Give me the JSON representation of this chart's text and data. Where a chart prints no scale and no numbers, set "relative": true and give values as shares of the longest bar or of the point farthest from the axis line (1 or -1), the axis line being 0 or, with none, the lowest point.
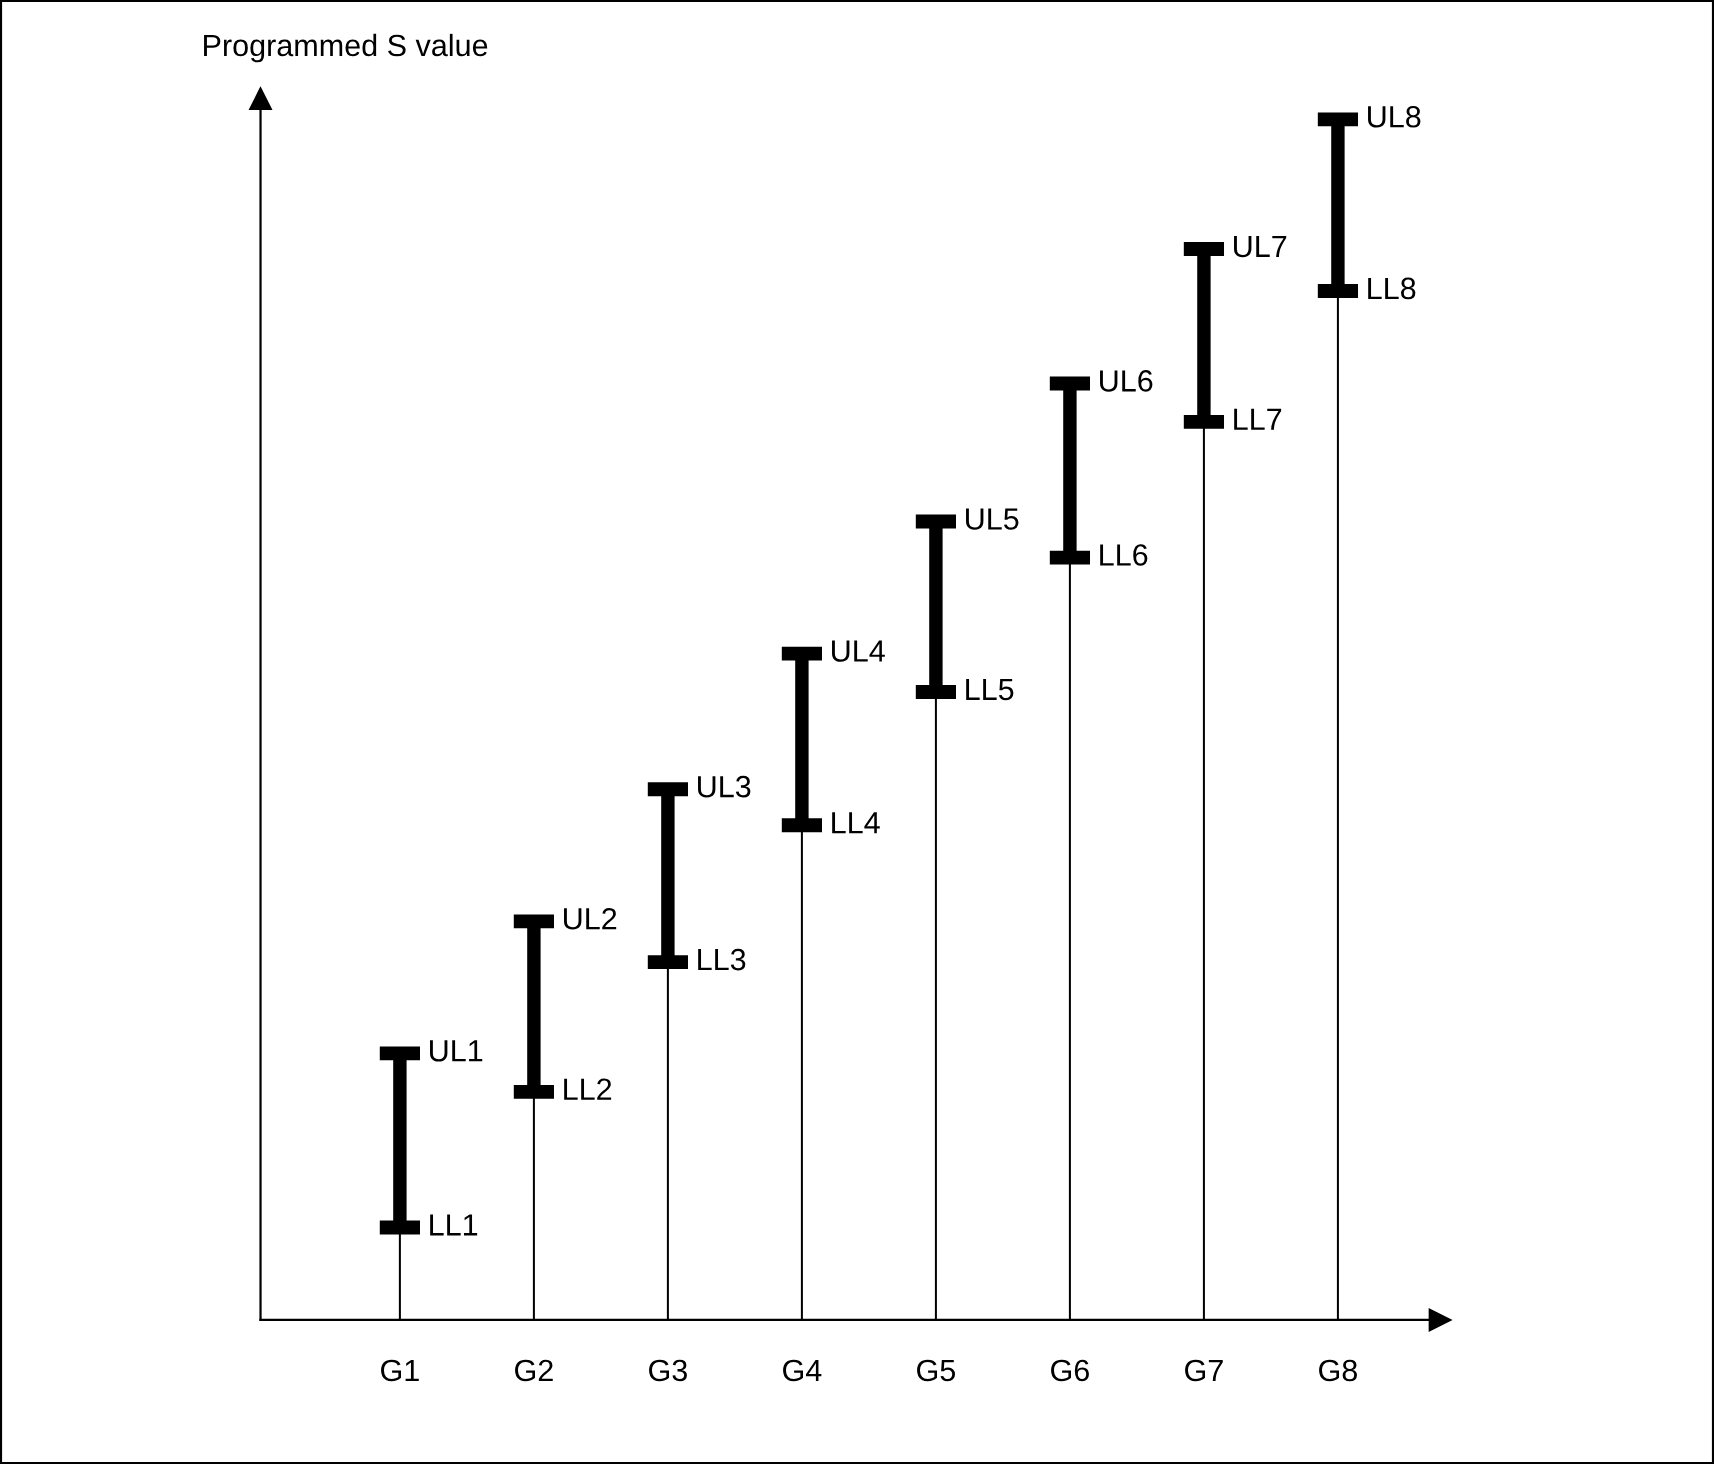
{
  "chart_data": {
    "type": "bar",
    "relative": true,
    "stacked": true,
    "ylabel": "Programmed S value",
    "categories": [
      "G1",
      "G2",
      "G3",
      "G4",
      "G5",
      "G6",
      "G7",
      "G8"
    ],
    "series": [
      {
        "color": "#000000",
        "values": [
          0.077,
          0.19,
          0.298,
          0.412,
          0.523,
          0.635,
          0.748,
          0.857
        ]
      },
      {
        "color": "#000000",
        "values": [
          0.145,
          0.142,
          0.144,
          0.143,
          0.142,
          0.145,
          0.144,
          0.143
        ]
      }
    ],
    "annotations": [
      {
        "text": "UL1",
        "x": "G1",
        "y": 0.222
      },
      {
        "text": "LL1",
        "x": "G1",
        "y": 0.077
      },
      {
        "text": "UL2",
        "x": "G2",
        "y": 0.332
      },
      {
        "text": "LL2",
        "x": "G2",
        "y": 0.19
      },
      {
        "text": "UL3",
        "x": "G3",
        "y": 0.442
      },
      {
        "text": "LL3",
        "x": "G3",
        "y": 0.298
      },
      {
        "text": "UL4",
        "x": "G4",
        "y": 0.555
      },
      {
        "text": "LL4",
        "x": "G4",
        "y": 0.412
      },
      {
        "text": "UL5",
        "x": "G5",
        "y": 0.665
      },
      {
        "text": "LL5",
        "x": "G5",
        "y": 0.523
      },
      {
        "text": "UL6",
        "x": "G6",
        "y": 0.78
      },
      {
        "text": "LL6",
        "x": "G6",
        "y": 0.635
      },
      {
        "text": "UL7",
        "x": "G7",
        "y": 0.892
      },
      {
        "text": "LL7",
        "x": "G7",
        "y": 0.748
      },
      {
        "text": "UL8",
        "x": "G8",
        "y": 1.0
      },
      {
        "text": "LL8",
        "x": "G8",
        "y": 0.857
      }
    ]
  }
}
